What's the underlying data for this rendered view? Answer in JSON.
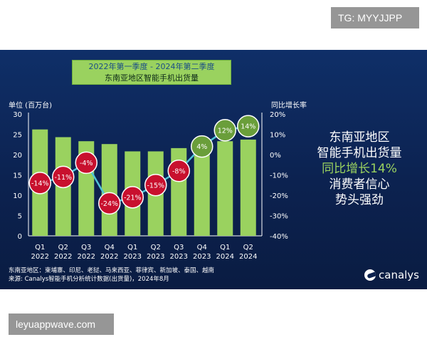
{
  "watermarks": {
    "top": "TG: MYYJJPP",
    "bottom": "leyuappwave.com"
  },
  "title": {
    "line1": "2022年第一季度 - 2024年第二季度",
    "line2": "东南亚地区智能手机出货量"
  },
  "right_text": {
    "line1": "东南亚地区",
    "line2": "智能手机出货量",
    "line3": "同比增长14%",
    "line4": "消费者信心",
    "line5": "势头强劲"
  },
  "footnote": {
    "line1": "东南亚地区：柬埔寨、印尼、老挝、马来西亚、菲律宾、新加坡、泰国、越南",
    "line2": "来源: Canalys智能手机分析统计数据(出货量)，2024年8月"
  },
  "brand": {
    "name": "canalys"
  },
  "colors": {
    "bar": "#9ad25f",
    "line": "#4fc4d6",
    "negative": "#c8102e",
    "positive": "#6a9e3a",
    "background": "#0c2250"
  },
  "chart_data": {
    "type": "bar",
    "categories": [
      "Q1 2022",
      "Q2 2022",
      "Q3 2022",
      "Q4 2022",
      "Q1 2023",
      "Q2 2023",
      "Q3 2023",
      "Q4 2023",
      "Q1 2024",
      "Q2 2024"
    ],
    "category_lines": [
      [
        "Q1",
        "2022"
      ],
      [
        "Q2",
        "2022"
      ],
      [
        "Q3",
        "2022"
      ],
      [
        "Q4",
        "2022"
      ],
      [
        "Q1",
        "2023"
      ],
      [
        "Q2",
        "2023"
      ],
      [
        "Q3",
        "2023"
      ],
      [
        "Q4",
        "2023"
      ],
      [
        "Q1",
        "2024"
      ],
      [
        "Q2",
        "2024"
      ]
    ],
    "ylabel": "单位 (百万台)",
    "y2label": "同比增长率",
    "ylim": [
      0,
      30
    ],
    "y2lim": [
      -40,
      20
    ],
    "yticks": [
      "0",
      "5",
      "10",
      "15",
      "20",
      "25",
      "30"
    ],
    "y2ticks": [
      "20%",
      "10%",
      "0%",
      "-10%",
      "-20%",
      "-30%",
      "-40%"
    ],
    "series": [
      {
        "type": "bar",
        "values": [
          26.2,
          24.3,
          23.3,
          22.6,
          20.8,
          20.8,
          21.6,
          23.1,
          23.3,
          23.7
        ]
      },
      {
        "type": "line",
        "axis": "right",
        "values": [
          -14,
          -11,
          -4,
          -24,
          -21,
          -15,
          -8,
          4,
          12,
          14
        ],
        "labels": [
          "-14%",
          "-11%",
          "-4%",
          "-24%",
          "-21%",
          "-15%",
          "-8%",
          "4%",
          "12%",
          "14%"
        ]
      }
    ]
  }
}
